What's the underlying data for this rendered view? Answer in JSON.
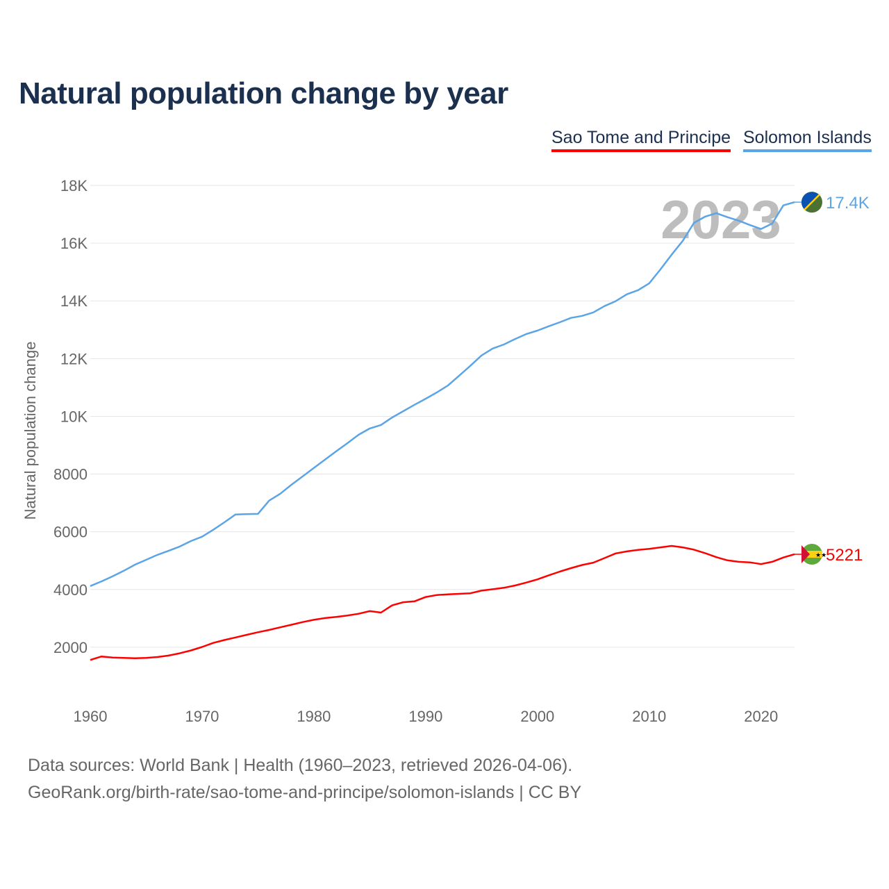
{
  "title": "Natural population change by year",
  "legend": [
    {
      "name": "Sao Tome and Principe",
      "color": "#ff0000"
    },
    {
      "name": "Solomon Islands",
      "color": "#5ba4e6"
    }
  ],
  "year_watermark": "2023",
  "footer": {
    "line1": "Data sources: World Bank | Health (1960–2023, retrieved 2026-04-06).",
    "line2": "GeoRank.org/birth-rate/sao-tome-and-principe/solomon-islands | CC BY"
  },
  "chart_data": {
    "type": "line",
    "title": "Natural population change by year",
    "xlabel": "",
    "ylabel": "Natural population change",
    "xlim": [
      1960,
      2023
    ],
    "ylim": [
      0,
      18000
    ],
    "grid": true,
    "legend_position": "top-right",
    "x_ticks": [
      1960,
      1970,
      1980,
      1990,
      2000,
      2010,
      2020
    ],
    "x_tick_labels": [
      "1960",
      "1970",
      "1980",
      "1990",
      "2000",
      "2010",
      "2020"
    ],
    "y_ticks": [
      2000,
      4000,
      6000,
      8000,
      10000,
      12000,
      14000,
      16000,
      18000
    ],
    "y_tick_labels": [
      "2000",
      "4000",
      "6000",
      "8000",
      "10K",
      "12K",
      "14K",
      "16K",
      "18K"
    ],
    "x": [
      1960,
      1961,
      1962,
      1963,
      1964,
      1965,
      1966,
      1967,
      1968,
      1969,
      1970,
      1971,
      1972,
      1973,
      1974,
      1975,
      1976,
      1977,
      1978,
      1979,
      1980,
      1981,
      1982,
      1983,
      1984,
      1985,
      1986,
      1987,
      1988,
      1989,
      1990,
      1991,
      1992,
      1993,
      1994,
      1995,
      1996,
      1997,
      1998,
      1999,
      2000,
      2001,
      2002,
      2003,
      2004,
      2005,
      2006,
      2007,
      2008,
      2009,
      2010,
      2011,
      2012,
      2013,
      2014,
      2015,
      2016,
      2017,
      2018,
      2019,
      2020,
      2021,
      2022,
      2023
    ],
    "series": [
      {
        "name": "Sao Tome and Principe",
        "color": "#ff0000",
        "end_label": "5221",
        "values": [
          1560,
          1680,
          1640,
          1630,
          1620,
          1630,
          1660,
          1710,
          1790,
          1890,
          2010,
          2150,
          2250,
          2340,
          2430,
          2520,
          2600,
          2690,
          2780,
          2870,
          2950,
          3010,
          3050,
          3100,
          3160,
          3250,
          3200,
          3450,
          3560,
          3590,
          3740,
          3810,
          3830,
          3850,
          3870,
          3960,
          4010,
          4060,
          4140,
          4240,
          4350,
          4490,
          4620,
          4740,
          4850,
          4930,
          5090,
          5250,
          5320,
          5370,
          5410,
          5460,
          5510,
          5460,
          5380,
          5260,
          5120,
          5010,
          4960,
          4940,
          4880,
          4960,
          5110,
          5221
        ]
      },
      {
        "name": "Solomon Islands",
        "color": "#5ba4e6",
        "end_label": "17.4K",
        "values": [
          4120,
          4280,
          4460,
          4650,
          4860,
          5030,
          5200,
          5340,
          5490,
          5680,
          5830,
          6070,
          6330,
          6600,
          6610,
          6620,
          7080,
          7320,
          7630,
          7920,
          8210,
          8500,
          8790,
          9070,
          9360,
          9580,
          9700,
          9960,
          10180,
          10400,
          10610,
          10830,
          11070,
          11410,
          11750,
          12110,
          12350,
          12490,
          12680,
          12850,
          12970,
          13120,
          13260,
          13410,
          13480,
          13600,
          13820,
          13990,
          14230,
          14370,
          14610,
          15090,
          15600,
          16080,
          16700,
          16920,
          17040,
          16900,
          16780,
          16630,
          16490,
          16680,
          17310,
          17420
        ]
      }
    ]
  }
}
